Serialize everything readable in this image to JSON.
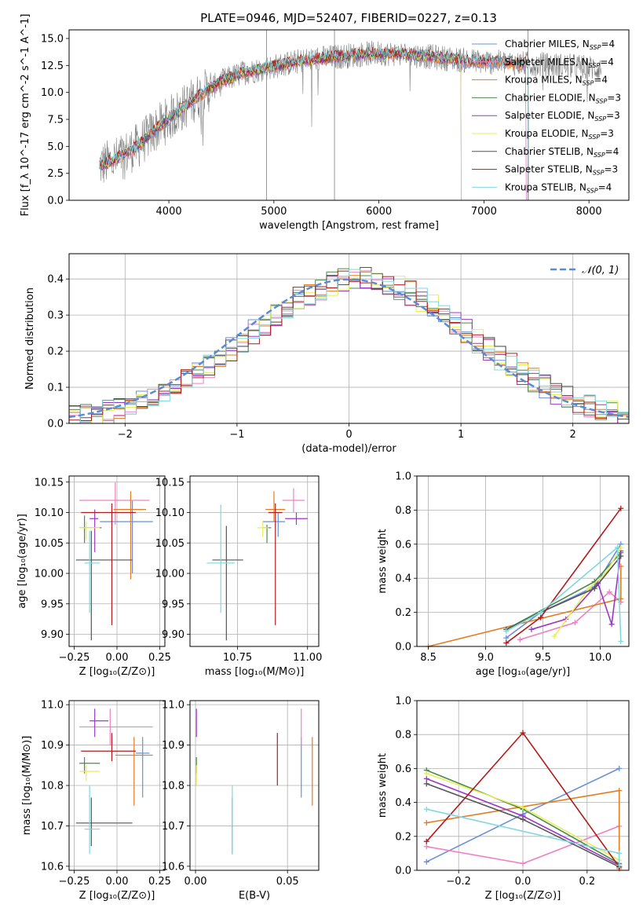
{
  "figure": {
    "title": "PLATE=0946, MJD=52407, FIBERID=0227, z=0.13"
  },
  "series_colors": {
    "Chabrier MILES": "#6a8fd8",
    "Salpeter MILES": "#ef82c4",
    "Kroupa MILES": "#e37b1f",
    "Chabrier ELODIE": "#4b8a4b",
    "Salpeter ELODIE": "#9b37c6",
    "Kroupa ELODIE": "#e8ee5a",
    "Chabrier STELIB": "#555555",
    "Salpeter STELIB": "#b01c1c",
    "Kroupa STELIB": "#7fd8de"
  },
  "chart_data": [
    {
      "id": "spectrum",
      "type": "line",
      "xlabel": "wavelength [Angstrom, rest frame]",
      "ylabel": "Flux [f_λ 10^-17 erg cm^-2 s^-1 A^-1]",
      "xlim": [
        3050,
        8380
      ],
      "ylim": [
        0,
        15.8
      ],
      "xticks": [
        4000,
        5000,
        6000,
        7000,
        8000
      ],
      "yticks": [
        0.0,
        2.5,
        5.0,
        7.5,
        10.0,
        12.5,
        15.0
      ],
      "ytick_labels": [
        "0.0",
        "2.5",
        "5.0",
        "7.5",
        "10.0",
        "12.5",
        "15.0"
      ],
      "grid": false,
      "legend": "top-right",
      "legend_entries": [
        {
          "series": "Chabrier MILES",
          "label": "Chabrier MILES, N",
          "sub": "SSP",
          "n": "=4"
        },
        {
          "series": "Salpeter MILES",
          "label": "Salpeter MILES, N",
          "sub": "SSP",
          "n": "=4"
        },
        {
          "series": "Kroupa MILES",
          "label": "Kroupa MILES, N",
          "sub": "SSP",
          "n": "=4"
        },
        {
          "series": "Chabrier ELODIE",
          "label": "Chabrier ELODIE, N",
          "sub": "SSP",
          "n": "=3"
        },
        {
          "series": "Salpeter ELODIE",
          "label": "Salpeter ELODIE, N",
          "sub": "SSP",
          "n": "=3"
        },
        {
          "series": "Kroupa ELODIE",
          "label": "Kroupa ELODIE, N",
          "sub": "SSP",
          "n": "=3"
        },
        {
          "series": "Chabrier STELIB",
          "label": "Chabrier STELIB, N",
          "sub": "SSP",
          "n": "=4"
        },
        {
          "series": "Salpeter STELIB",
          "label": "Salpeter STELIB, N",
          "sub": "SSP",
          "n": "=3"
        },
        {
          "series": "Kroupa STELIB",
          "label": "Kroupa STELIB, N",
          "sub": "SSP",
          "n": "=4"
        }
      ],
      "continuum_x": [
        3340,
        3500,
        3700,
        3900,
        4100,
        4300,
        4500,
        4700,
        4900,
        5100,
        5300,
        5500,
        5700,
        5900,
        6100,
        6300,
        6500,
        6700,
        6900,
        7100,
        7300,
        7500,
        7700,
        7900,
        8120
      ],
      "continuum_y": [
        3.2,
        3.8,
        5.0,
        6.8,
        8.3,
        9.8,
        11.0,
        11.8,
        12.2,
        12.6,
        13.0,
        13.2,
        13.4,
        13.6,
        13.6,
        13.5,
        13.3,
        13.1,
        12.9,
        12.8,
        12.7,
        12.6,
        12.5,
        12.4,
        12.2
      ],
      "model_end": {
        "Chabrier MILES": 7400,
        "Salpeter MILES": 7400,
        "Kroupa MILES": 7420,
        "Chabrier ELODIE": 6780,
        "Salpeter ELODIE": 6780,
        "Kroupa ELODIE": 6780,
        "Chabrier STELIB": 7420,
        "Salpeter STELIB": 7420,
        "Kroupa STELIB": 7420
      }
    },
    {
      "id": "residuals",
      "type": "histogram",
      "xlabel": "(data-model)/error",
      "ylabel": "Normed distribution",
      "xlim": [
        -2.5,
        2.5
      ],
      "ylim": [
        0,
        0.47
      ],
      "xticks": [
        -2,
        -1,
        0,
        1,
        2
      ],
      "xtick_labels": [
        "−2",
        "−1",
        "0",
        "1",
        "2"
      ],
      "yticks": [
        0.0,
        0.1,
        0.2,
        0.3,
        0.4
      ],
      "ytick_labels": [
        "0.0",
        "0.1",
        "0.2",
        "0.3",
        "0.4"
      ],
      "grid": true,
      "bin_width": 0.1,
      "reference_curve": {
        "label": "𝒩(0, 1)",
        "mean": 0,
        "sigma": 1,
        "color": "#5b8ad6",
        "style": "dashed"
      },
      "legend": "top-right"
    },
    {
      "id": "age-vs-Z",
      "type": "errorbar",
      "xlabel": "Z [log₁₀(Z/Z⊙)]",
      "ylabel": "age  [log₁₀(age/yr)]",
      "xlim": [
        -0.28,
        0.28
      ],
      "ylim": [
        9.88,
        10.16
      ],
      "xticks": [
        -0.25,
        0.0,
        0.25
      ],
      "xtick_labels": [
        "−0.25",
        "0.00",
        "0.25"
      ],
      "yticks": [
        9.9,
        9.95,
        10.0,
        10.05,
        10.1,
        10.15
      ],
      "ytick_labels": [
        "9.90",
        "9.95",
        "10.00",
        "10.05",
        "10.10",
        "10.15"
      ],
      "grid": true,
      "points": [
        {
          "series": "Chabrier MILES",
          "x": 0.09,
          "y": 10.085,
          "xlo": -0.1,
          "xhi": 0.21,
          "ylo": 10.0,
          "yhi": 10.12
        },
        {
          "series": "Salpeter MILES",
          "x": -0.01,
          "y": 10.12,
          "xlo": -0.22,
          "xhi": 0.19,
          "ylo": 10.08,
          "yhi": 10.15
        },
        {
          "series": "Kroupa MILES",
          "x": 0.08,
          "y": 10.105,
          "xlo": -0.02,
          "xhi": 0.17,
          "ylo": 9.99,
          "yhi": 10.135
        },
        {
          "series": "Chabrier ELODIE",
          "x": -0.19,
          "y": 10.075,
          "xlo": -0.22,
          "xhi": -0.09,
          "ylo": 10.05,
          "yhi": 10.095
        },
        {
          "series": "Salpeter ELODIE",
          "x": -0.13,
          "y": 10.09,
          "xlo": -0.16,
          "xhi": -0.11,
          "ylo": 10.035,
          "yhi": 10.105
        },
        {
          "series": "Kroupa ELODIE",
          "x": -0.18,
          "y": 10.075,
          "xlo": -0.22,
          "xhi": -0.1,
          "ylo": 10.055,
          "yhi": 10.085
        },
        {
          "series": "Chabrier STELIB",
          "x": -0.15,
          "y": 10.022,
          "xlo": -0.24,
          "xhi": 0.09,
          "ylo": 9.89,
          "yhi": 10.07
        },
        {
          "series": "Salpeter STELIB",
          "x": -0.03,
          "y": 10.1,
          "xlo": -0.21,
          "xhi": 0.11,
          "ylo": 9.915,
          "yhi": 10.115
        },
        {
          "series": "Kroupa STELIB",
          "x": -0.16,
          "y": 10.017,
          "xlo": -0.19,
          "xhi": -0.1,
          "ylo": 9.935,
          "yhi": 10.07
        }
      ]
    },
    {
      "id": "age-vs-mass",
      "type": "errorbar",
      "xlabel": "mass [log₁₀(M/M⊙)]",
      "ylabel": "",
      "xlim": [
        10.58,
        11.04
      ],
      "ylim": [
        9.88,
        10.16
      ],
      "xticks": [
        10.75,
        11.0
      ],
      "xtick_labels": [
        "10.75",
        "11.00"
      ],
      "yticks": [
        9.9,
        9.95,
        10.0,
        10.05,
        10.1,
        10.15
      ],
      "ytick_labels": [
        "9.90",
        "9.95",
        "10.00",
        "10.05",
        "10.10",
        "10.15"
      ],
      "grid": true,
      "points": [
        {
          "series": "Chabrier MILES",
          "x": 10.895,
          "y": 10.085,
          "xlo": 10.84,
          "xhi": 10.92,
          "ylo": 10.06,
          "yhi": 10.1
        },
        {
          "series": "Salpeter MILES",
          "x": 10.95,
          "y": 10.12,
          "xlo": 10.91,
          "xhi": 10.99,
          "ylo": 10.1,
          "yhi": 10.14
        },
        {
          "series": "Kroupa MILES",
          "x": 10.88,
          "y": 10.105,
          "xlo": 10.85,
          "xhi": 10.92,
          "ylo": 10.085,
          "yhi": 10.135
        },
        {
          "series": "Chabrier ELODIE",
          "x": 10.855,
          "y": 10.075,
          "xlo": 10.84,
          "xhi": 10.87,
          "ylo": 10.05,
          "yhi": 10.08
        },
        {
          "series": "Salpeter ELODIE",
          "x": 10.96,
          "y": 10.09,
          "xlo": 10.92,
          "xhi": 11.0,
          "ylo": 10.08,
          "yhi": 10.1
        },
        {
          "series": "Kroupa ELODIE",
          "x": 10.84,
          "y": 10.075,
          "xlo": 10.82,
          "xhi": 10.86,
          "ylo": 10.06,
          "yhi": 10.085
        },
        {
          "series": "Chabrier STELIB",
          "x": 10.71,
          "y": 10.022,
          "xlo": 10.66,
          "xhi": 10.77,
          "ylo": 9.89,
          "yhi": 10.078
        },
        {
          "series": "Salpeter STELIB",
          "x": 10.885,
          "y": 10.1,
          "xlo": 10.86,
          "xhi": 10.91,
          "ylo": 9.915,
          "yhi": 10.115
        },
        {
          "series": "Kroupa STELIB",
          "x": 10.69,
          "y": 10.017,
          "xlo": 10.64,
          "xhi": 10.74,
          "ylo": 9.935,
          "yhi": 10.113
        }
      ]
    },
    {
      "id": "weight-vs-age",
      "type": "line",
      "xlabel": "age  [log₁₀(age/yr)]",
      "ylabel": "mass weight",
      "xlim": [
        8.4,
        10.25
      ],
      "ylim": [
        0,
        1.0
      ],
      "xticks": [
        8.5,
        9.0,
        9.5,
        10.0
      ],
      "xtick_labels": [
        "8.5",
        "9.0",
        "9.5",
        "10.0"
      ],
      "yticks": [
        0.0,
        0.2,
        0.4,
        0.6,
        0.8,
        1.0
      ],
      "ytick_labels": [
        "0.0",
        "0.2",
        "0.4",
        "0.6",
        "0.8",
        "1.0"
      ],
      "grid": true,
      "series": [
        {
          "series": "Chabrier MILES",
          "x": [
            9.18,
            9.48,
            9.95,
            10.18
          ],
          "y": [
            0.05,
            0.2,
            0.35,
            0.6
          ]
        },
        {
          "series": "Salpeter MILES",
          "x": [
            9.3,
            9.78,
            10.08,
            10.18
          ],
          "y": [
            0.04,
            0.14,
            0.32,
            0.26
          ]
        },
        {
          "series": "Kroupa MILES",
          "x": [
            8.5,
            10.18,
            10.18
          ],
          "y": [
            0.0,
            0.28,
            0.47
          ]
        },
        {
          "series": "Chabrier ELODIE",
          "x": [
            9.18,
            9.95,
            10.18
          ],
          "y": [
            0.1,
            0.38,
            0.55
          ]
        },
        {
          "series": "Salpeter ELODIE",
          "x": [
            9.4,
            9.7,
            9.98,
            10.1,
            10.18
          ],
          "y": [
            0.1,
            0.16,
            0.37,
            0.13,
            0.56
          ]
        },
        {
          "series": "Kroupa ELODIE",
          "x": [
            9.6,
            9.9,
            10.05,
            10.18
          ],
          "y": [
            0.06,
            0.34,
            0.43,
            0.58
          ]
        },
        {
          "series": "Chabrier STELIB",
          "x": [
            9.18,
            9.48,
            9.95,
            10.18
          ],
          "y": [
            0.1,
            0.2,
            0.34,
            0.53
          ]
        },
        {
          "series": "Salpeter STELIB",
          "x": [
            9.18,
            9.48,
            10.18
          ],
          "y": [
            0.02,
            0.17,
            0.81
          ]
        },
        {
          "series": "Kroupa STELIB",
          "x": [
            9.18,
            9.48,
            10.15,
            10.18
          ],
          "y": [
            0.09,
            0.2,
            0.58,
            0.03
          ]
        }
      ]
    },
    {
      "id": "mass-vs-Z",
      "type": "errorbar",
      "xlabel": "Z [log₁₀(Z/Z⊙)]",
      "ylabel": "mass [log₁₀(M/M⊙)]",
      "xlim": [
        -0.28,
        0.28
      ],
      "ylim": [
        10.59,
        11.01
      ],
      "xticks": [
        -0.25,
        0.0,
        0.25
      ],
      "xtick_labels": [
        "−0.25",
        "0.00",
        "0.25"
      ],
      "yticks": [
        10.6,
        10.7,
        10.8,
        10.9,
        11.0
      ],
      "ytick_labels": [
        "10.6",
        "10.7",
        "10.8",
        "10.9",
        "11.0"
      ],
      "grid": true,
      "points": [
        {
          "series": "Chabrier MILES",
          "x": 0.15,
          "y": 10.88,
          "xlo": 0.11,
          "xhi": 0.19,
          "ylo": 10.77,
          "yhi": 10.92
        },
        {
          "series": "Salpeter MILES",
          "x": -0.04,
          "y": 10.945,
          "xlo": -0.22,
          "xhi": 0.21,
          "ylo": 10.9,
          "yhi": 10.99
        },
        {
          "series": "Kroupa MILES",
          "x": 0.1,
          "y": 10.875,
          "xlo": -0.01,
          "xhi": 0.21,
          "ylo": 10.75,
          "yhi": 10.92
        },
        {
          "series": "Chabrier ELODIE",
          "x": -0.19,
          "y": 10.855,
          "xlo": -0.22,
          "xhi": -0.1,
          "ylo": 10.83,
          "yhi": 10.87
        },
        {
          "series": "Salpeter ELODIE",
          "x": -0.13,
          "y": 10.96,
          "xlo": -0.16,
          "xhi": -0.05,
          "ylo": 10.92,
          "yhi": 10.99
        },
        {
          "series": "Kroupa ELODIE",
          "x": -0.18,
          "y": 10.835,
          "xlo": -0.22,
          "xhi": -0.1,
          "ylo": 10.81,
          "yhi": 10.85
        },
        {
          "series": "Chabrier STELIB",
          "x": -0.15,
          "y": 10.707,
          "xlo": -0.24,
          "xhi": 0.09,
          "ylo": 10.65,
          "yhi": 10.77
        },
        {
          "series": "Salpeter STELIB",
          "x": -0.03,
          "y": 10.885,
          "xlo": -0.21,
          "xhi": 0.11,
          "ylo": 10.86,
          "yhi": 10.93
        },
        {
          "series": "Kroupa STELIB",
          "x": -0.16,
          "y": 10.692,
          "xlo": -0.19,
          "xhi": -0.1,
          "ylo": 10.63,
          "yhi": 10.8
        }
      ]
    },
    {
      "id": "mass-vs-EBV",
      "type": "errorbar",
      "xlabel": "E(B-V)",
      "ylabel": "",
      "xlim": [
        -0.003,
        0.067
      ],
      "ylim": [
        10.59,
        11.01
      ],
      "xticks": [
        0.0,
        0.05
      ],
      "xtick_labels": [
        "0.00",
        "0.05"
      ],
      "yticks": [
        10.6,
        10.7,
        10.8,
        10.9,
        11.0
      ],
      "ytick_labels": [
        "10.6",
        "10.7",
        "10.8",
        "10.9",
        "11.0"
      ],
      "grid": true,
      "points": [
        {
          "series": "Chabrier MILES",
          "x": 0.0575,
          "y": 10.88,
          "ylo": 10.77,
          "yhi": 10.92
        },
        {
          "series": "Salpeter MILES",
          "x": 0.0575,
          "y": 10.945,
          "ylo": 10.9,
          "yhi": 10.99
        },
        {
          "series": "Kroupa MILES",
          "x": 0.0635,
          "y": 10.875,
          "ylo": 10.75,
          "yhi": 10.92
        },
        {
          "series": "Chabrier ELODIE",
          "x": 0.0005,
          "y": 10.855,
          "ylo": 10.83,
          "yhi": 10.87
        },
        {
          "series": "Salpeter ELODIE",
          "x": 0.0005,
          "y": 10.96,
          "ylo": 10.92,
          "yhi": 10.99
        },
        {
          "series": "Kroupa ELODIE",
          "x": 0.0005,
          "y": 10.835,
          "ylo": 10.8,
          "yhi": 10.85
        },
        {
          "series": "Chabrier STELIB",
          "x": 0.02,
          "y": 10.707,
          "ylo": 10.63,
          "yhi": 10.77
        },
        {
          "series": "Salpeter STELIB",
          "x": 0.0445,
          "y": 10.885,
          "ylo": 10.8,
          "yhi": 10.93
        },
        {
          "series": "Kroupa STELIB",
          "x": 0.02,
          "y": 10.692,
          "ylo": 10.63,
          "yhi": 10.8
        }
      ]
    },
    {
      "id": "weight-vs-Z",
      "type": "line",
      "xlabel": "Z [log₁₀(Z/Z⊙)]",
      "ylabel": "mass weight",
      "xlim": [
        -0.33,
        0.33
      ],
      "ylim": [
        0,
        1.0
      ],
      "xticks": [
        -0.2,
        0.0,
        0.2
      ],
      "xtick_labels": [
        "−0.2",
        "0.0",
        "0.2"
      ],
      "yticks": [
        0.0,
        0.2,
        0.4,
        0.6,
        0.8,
        1.0
      ],
      "ytick_labels": [
        "0.0",
        "0.2",
        "0.4",
        "0.6",
        "0.8",
        "1.0"
      ],
      "grid": true,
      "series": [
        {
          "series": "Chabrier MILES",
          "x": [
            -0.3,
            0.0,
            0.3
          ],
          "y": [
            0.05,
            0.33,
            0.6
          ]
        },
        {
          "series": "Salpeter MILES",
          "x": [
            -0.3,
            0.0,
            0.3
          ],
          "y": [
            0.14,
            0.04,
            0.26
          ]
        },
        {
          "series": "Kroupa MILES",
          "x": [
            -0.3,
            0.3,
            0.3
          ],
          "y": [
            0.28,
            0.47,
            0.01
          ]
        },
        {
          "series": "Chabrier ELODIE",
          "x": [
            -0.3,
            0.0,
            0.3
          ],
          "y": [
            0.59,
            0.36,
            0.04
          ]
        },
        {
          "series": "Salpeter ELODIE",
          "x": [
            -0.3,
            0.0,
            0.3
          ],
          "y": [
            0.54,
            0.32,
            0.03
          ]
        },
        {
          "series": "Kroupa ELODIE",
          "x": [
            -0.3,
            0.0,
            0.3
          ],
          "y": [
            0.57,
            0.37,
            0.06
          ]
        },
        {
          "series": "Chabrier STELIB",
          "x": [
            -0.3,
            0.0,
            0.3
          ],
          "y": [
            0.51,
            0.3,
            0.02
          ]
        },
        {
          "series": "Salpeter STELIB",
          "x": [
            -0.3,
            0.0,
            0.3
          ],
          "y": [
            0.17,
            0.81,
            0.02
          ]
        },
        {
          "series": "Kroupa STELIB",
          "x": [
            -0.3,
            0.3,
            0.3
          ],
          "y": [
            0.36,
            0.1,
            0.03
          ]
        }
      ]
    }
  ]
}
